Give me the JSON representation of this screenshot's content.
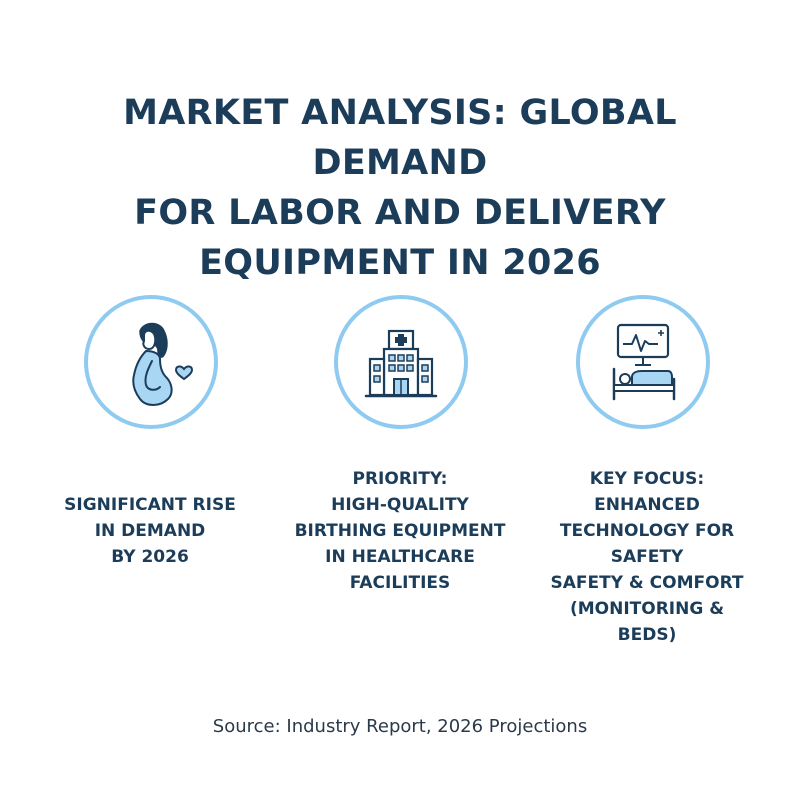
{
  "title": {
    "line1": "MARKET ANALYSIS: GLOBAL DEMAND",
    "line2": "FOR LABOR AND DELIVERY",
    "line3": "EQUIPMENT IN 2026"
  },
  "items": [
    {
      "icon": "pregnant-woman-icon",
      "caption": [
        "SIGNIFICANT RISE",
        "IN DEMAND",
        "BY 2026"
      ]
    },
    {
      "icon": "hospital-icon",
      "caption": [
        "PRIORITY:",
        "HIGH-QUALITY",
        "BIRTHING EQUIPMENT",
        "IN HEALTHCARE",
        "FACILITIES"
      ]
    },
    {
      "icon": "monitor-and-bed-icon",
      "caption": [
        "KEY FOCUS:",
        "ENHANCED",
        "TECHNOLOGY FOR SAFETY",
        "SAFETY & COMFORT",
        "(MONITORING &",
        "BEDS)"
      ]
    }
  ],
  "source": "Source: Industry Report, 2026 Projections",
  "colors": {
    "title": "#1c3d5a",
    "circle_border": "#8fcaf0",
    "icon_line": "#1c3d5a",
    "icon_fill": "#a9d6f3"
  }
}
